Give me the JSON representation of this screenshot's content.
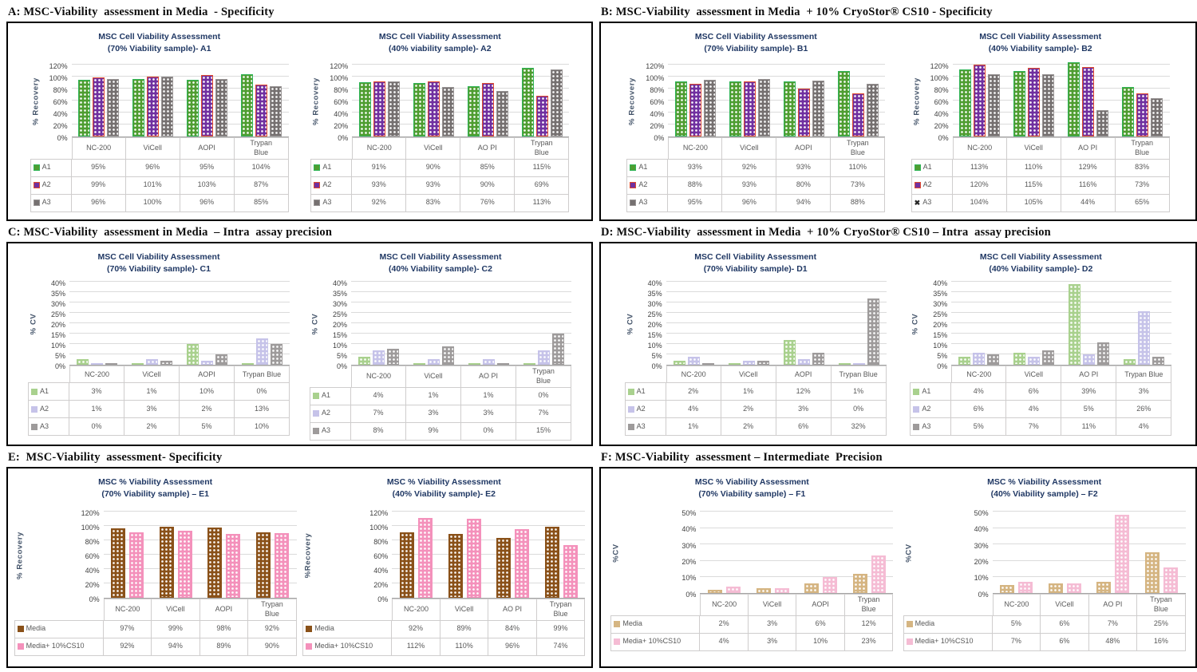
{
  "figure": {
    "background": "#ffffff",
    "panel_border_color": "#000000",
    "title_color": "#203864",
    "gridline_color": "#DBDBDB",
    "table_border_color": "#CFCDCD"
  },
  "panels": [
    {
      "key": "A",
      "header": "A: MSC-Viability  assessment in Media  - Specificity",
      "chart_ids": [
        "A1",
        "A2"
      ]
    },
    {
      "key": "B",
      "header": "B: MSC-Viability  assessment in Media  + 10% CryoStor® CS10 - Specificity",
      "chart_ids": [
        "B1",
        "B2"
      ]
    },
    {
      "key": "C",
      "header": "C: MSC-Viability  assessment in Media  – Intra  assay precision",
      "chart_ids": [
        "C1",
        "C2"
      ]
    },
    {
      "key": "D",
      "header": "D: MSC-Viability  assessment in Media  + 10% CryoStor® CS10 – Intra  assay precision",
      "chart_ids": [
        "D1",
        "D2"
      ]
    },
    {
      "key": "E",
      "header": "E:  MSC-Viability  assessment- Specificity",
      "chart_ids": [
        "E1",
        "E2"
      ]
    },
    {
      "key": "F",
      "header": "F: MSC-Viability  assessment – Intermediate  Precision",
      "chart_ids": [
        "F1",
        "F2"
      ]
    }
  ],
  "chart_data": [
    {
      "id": "A1",
      "type": "bar",
      "title_lines": [
        "MSC Cell Viability Assessment",
        "(70% Viability sample)-  A1"
      ],
      "ylabel": "% Recovery",
      "ylim": [
        0,
        120
      ],
      "ytick_step": 20,
      "grid": true,
      "legend_position": "table-left",
      "categories": [
        "NC-200",
        "ViCell",
        "AOPI",
        "Trypan\nBlue"
      ],
      "series": [
        {
          "name": "A1",
          "fill": "#4F9D31",
          "border": "#2FB457",
          "values": [
            95,
            96,
            95,
            104
          ]
        },
        {
          "name": "A2",
          "fill": "#7030A0",
          "border": "#E04A2E",
          "values": [
            99,
            101,
            103,
            87
          ]
        },
        {
          "name": "A3",
          "fill": "#757070",
          "border": "#989494",
          "values": [
            96,
            100,
            96,
            85
          ]
        }
      ]
    },
    {
      "id": "A2",
      "type": "bar",
      "title_lines": [
        "MSC Cell Viability Assessment",
        "(40% viability sample)-  A2"
      ],
      "ylabel": "% Recovery",
      "ylim": [
        0,
        120
      ],
      "ytick_step": 20,
      "grid": true,
      "legend_position": "table-left",
      "categories": [
        "NC-200",
        "ViCell",
        "AO PI",
        "Trypan\nBlue"
      ],
      "series": [
        {
          "name": "A1",
          "fill": "#4F9D31",
          "border": "#2FB457",
          "values": [
            91,
            90,
            85,
            115
          ]
        },
        {
          "name": "A2",
          "fill": "#7030A0",
          "border": "#E04A2E",
          "values": [
            93,
            93,
            90,
            69
          ]
        },
        {
          "name": "A3",
          "fill": "#757070",
          "border": "#989494",
          "values": [
            92,
            83,
            76,
            113
          ]
        }
      ]
    },
    {
      "id": "B1",
      "type": "bar",
      "title_lines": [
        "MSC Cell Viability Assessment",
        "(70% Viability sample)-  B1"
      ],
      "ylabel": "% Recovery",
      "ylim": [
        0,
        120
      ],
      "ytick_step": 20,
      "grid": true,
      "legend_position": "table-left",
      "categories": [
        "NC-200",
        "ViCell",
        "AOPI",
        "Trypan\nBlue"
      ],
      "series": [
        {
          "name": "A1",
          "fill": "#4F9D31",
          "border": "#2FB457",
          "values": [
            93,
            92,
            93,
            110
          ]
        },
        {
          "name": "A2",
          "fill": "#7030A0",
          "border": "#E04A2E",
          "values": [
            88,
            93,
            80,
            73
          ]
        },
        {
          "name": "A3",
          "fill": "#757070",
          "border": "#989494",
          "values": [
            95,
            96,
            94,
            88
          ]
        }
      ]
    },
    {
      "id": "B2",
      "type": "bar",
      "title_lines": [
        "MSC Cell Viability Assessment",
        "(40% Viability sample)-  B2"
      ],
      "ylabel": "% Recovery",
      "ylim": [
        0,
        120
      ],
      "ytick_step": 20,
      "grid": true,
      "legend_position": "table-left",
      "categories": [
        "NC-200",
        "ViCell",
        "AO PI",
        "Trypan\nBlue"
      ],
      "series": [
        {
          "name": "A1",
          "fill": "#4F9D31",
          "border": "#2FB457",
          "values": [
            113,
            110,
            129,
            83
          ]
        },
        {
          "name": "A2",
          "fill": "#7030A0",
          "border": "#E04A2E",
          "values": [
            120,
            115,
            116,
            73
          ]
        },
        {
          "name": "A3",
          "fill": "#757070",
          "border": "#989494",
          "marker": "x",
          "values": [
            104,
            105,
            44,
            65
          ]
        }
      ]
    },
    {
      "id": "C1",
      "type": "bar",
      "title_lines": [
        "MSC Cell Viability Assessment",
        "(70% Viability sample)-  C1"
      ],
      "ylabel": "% CV",
      "ylim": [
        0,
        40
      ],
      "ytick_step": 5,
      "grid": true,
      "legend_position": "table-left",
      "categories": [
        "NC-200",
        "ViCell",
        "AOPI",
        "Trypan Blue"
      ],
      "series": [
        {
          "name": "A1",
          "fill": "#A9D18E",
          "border": "#A9D18E",
          "values": [
            3,
            1,
            10,
            0
          ]
        },
        {
          "name": "A2",
          "fill": "#C6C3E9",
          "border": "#C6C3E9",
          "values": [
            1,
            3,
            2,
            13
          ]
        },
        {
          "name": "A3",
          "fill": "#9E9B9B",
          "border": "#9E9B9B",
          "values": [
            0,
            2,
            5,
            10
          ]
        }
      ]
    },
    {
      "id": "C2",
      "type": "bar",
      "title_lines": [
        "MSC Cell Viability Assessment",
        "(40% Viability sample)-  C2"
      ],
      "ylabel": "% CV",
      "ylim": [
        0,
        40
      ],
      "ytick_step": 5,
      "grid": true,
      "legend_position": "table-left",
      "categories": [
        "NC-200",
        "ViCell",
        "AO PI",
        "Trypan\nBlue"
      ],
      "series": [
        {
          "name": "A1",
          "fill": "#A9D18E",
          "border": "#A9D18E",
          "values": [
            4,
            1,
            1,
            0
          ]
        },
        {
          "name": "A2",
          "fill": "#C6C3E9",
          "border": "#C6C3E9",
          "values": [
            7,
            3,
            3,
            7
          ]
        },
        {
          "name": "A3",
          "fill": "#9E9B9B",
          "border": "#9E9B9B",
          "values": [
            8,
            9,
            0,
            15
          ]
        }
      ]
    },
    {
      "id": "D1",
      "type": "bar",
      "title_lines": [
        "MSC Cell Viability Assessment",
        "(70% Viability sample)-  D1"
      ],
      "ylabel": "% CV",
      "ylim": [
        0,
        40
      ],
      "ytick_step": 5,
      "grid": true,
      "legend_position": "table-left",
      "categories": [
        "NC-200",
        "ViCell",
        "AOPI",
        "Trypan Blue"
      ],
      "series": [
        {
          "name": "A1",
          "fill": "#A9D18E",
          "border": "#A9D18E",
          "values": [
            2,
            1,
            12,
            1
          ]
        },
        {
          "name": "A2",
          "fill": "#C6C3E9",
          "border": "#C6C3E9",
          "values": [
            4,
            2,
            3,
            0
          ]
        },
        {
          "name": "A3",
          "fill": "#9E9B9B",
          "border": "#9E9B9B",
          "values": [
            1,
            2,
            6,
            32
          ]
        }
      ]
    },
    {
      "id": "D2",
      "type": "bar",
      "title_lines": [
        "MSC Cell Viability Assessment",
        "(40% Viability sample)-  D2"
      ],
      "ylabel": "% CV",
      "ylim": [
        0,
        40
      ],
      "ytick_step": 5,
      "grid": true,
      "legend_position": "table-left",
      "categories": [
        "NC-200",
        "ViCell",
        "AO PI",
        "Trypan Blue"
      ],
      "series": [
        {
          "name": "A1",
          "fill": "#A9D18E",
          "border": "#A9D18E",
          "values": [
            4,
            6,
            39,
            3
          ]
        },
        {
          "name": "A2",
          "fill": "#C6C3E9",
          "border": "#C6C3E9",
          "values": [
            6,
            4,
            5,
            26
          ]
        },
        {
          "name": "A3",
          "fill": "#9E9B9B",
          "border": "#9E9B9B",
          "values": [
            5,
            7,
            11,
            4
          ]
        }
      ]
    },
    {
      "id": "E1",
      "type": "bar",
      "title_lines": [
        "MSC % Viability Assessment",
        "(70% Viability sample) –  E1"
      ],
      "ylabel": "% Recovery",
      "ylim": [
        0,
        120
      ],
      "ytick_step": 20,
      "grid": true,
      "legend_position": "table-left",
      "categories": [
        "NC-200",
        "ViCell",
        "AOPI",
        "Trypan\nBlue"
      ],
      "series": [
        {
          "name": "Media",
          "fill": "#8A5119",
          "border": "#8A5119",
          "values": [
            97,
            99,
            98,
            92
          ]
        },
        {
          "name": "Media+ 10%CS10",
          "fill": "#F491BB",
          "border": "#F491BB",
          "values": [
            92,
            94,
            89,
            90
          ]
        }
      ]
    },
    {
      "id": "E2",
      "type": "bar",
      "title_lines": [
        "MSC % Viability Assessment",
        "(40% Viability sample)-  E2"
      ],
      "ylabel": "%Recovery",
      "ylim": [
        0,
        120
      ],
      "ytick_step": 20,
      "grid": true,
      "legend_position": "table-left",
      "categories": [
        "NC-200",
        "ViCell",
        "AO PI",
        "Trypan\nBlue"
      ],
      "series": [
        {
          "name": "Media",
          "fill": "#8A5119",
          "border": "#8A5119",
          "values": [
            92,
            89,
            84,
            99
          ]
        },
        {
          "name": "Media+ 10%CS10",
          "fill": "#F491BB",
          "border": "#F491BB",
          "values": [
            112,
            110,
            96,
            74
          ]
        }
      ]
    },
    {
      "id": "F1",
      "type": "bar",
      "title_lines": [
        "MSC % Viability Assessment",
        "(70% Viability sample) –  F1"
      ],
      "ylabel": "%CV",
      "ylim": [
        0,
        50
      ],
      "ytick_step": 10,
      "grid": true,
      "legend_position": "table-left",
      "categories": [
        "NC-200",
        "ViCell",
        "AOPI",
        "Trypan\nBlue"
      ],
      "series": [
        {
          "name": "Media",
          "fill": "#D5B582",
          "border": "#D5B582",
          "values": [
            2,
            3,
            6,
            12
          ]
        },
        {
          "name": "Media+ 10%CS10",
          "fill": "#F5BCD4",
          "border": "#F5BCD4",
          "values": [
            4,
            3,
            10,
            23
          ]
        }
      ]
    },
    {
      "id": "F2",
      "type": "bar",
      "title_lines": [
        "MSC % Viability Assessment",
        "(40% Viability sample) –  F2"
      ],
      "ylabel": "%CV",
      "ylim": [
        0,
        50
      ],
      "ytick_step": 10,
      "grid": true,
      "legend_position": "table-left",
      "categories": [
        "NC-200",
        "ViCell",
        "AO PI",
        "Trypan\nBlue"
      ],
      "series": [
        {
          "name": "Media",
          "fill": "#D5B582",
          "border": "#D5B582",
          "values": [
            5,
            6,
            7,
            25
          ]
        },
        {
          "name": "Media+ 10%CS10",
          "fill": "#F5BCD4",
          "border": "#F5BCD4",
          "values": [
            7,
            6,
            48,
            16
          ]
        }
      ]
    }
  ]
}
